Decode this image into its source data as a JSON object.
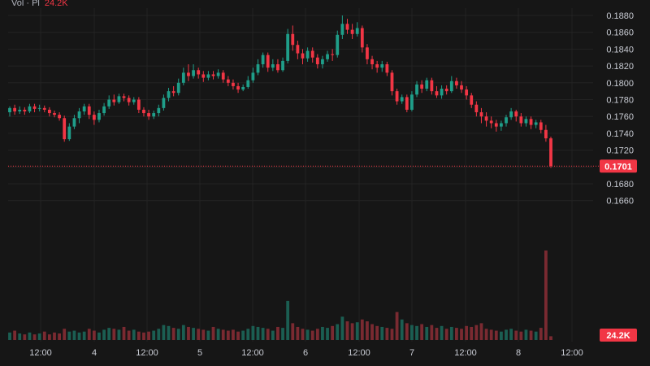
{
  "legend": {
    "label": "Vol · Pl",
    "value": "24.2K"
  },
  "colors": {
    "up": "#1f9e89",
    "down": "#f23645",
    "upVol": "#1b5e52",
    "downVol": "#7a2a31",
    "grid": "#232323",
    "bg": "#161616"
  },
  "chart_data": {
    "type": "candlestick",
    "y_ticks": [
      "0.1880",
      "0.1860",
      "0.1840",
      "0.1820",
      "0.1800",
      "0.1780",
      "0.1760",
      "0.1740",
      "0.1720",
      "0.1700",
      "0.1680",
      "0.1660"
    ],
    "x_ticks": [
      "12:00",
      "4",
      "12:00",
      "5",
      "12:00",
      "6",
      "12:00",
      "7",
      "12:00",
      "8",
      "12:00"
    ],
    "ylim": [
      0.1648,
      0.1888
    ],
    "last_price": "0.1701",
    "last_volume": "24.2K",
    "candles": [
      [
        0.1765,
        0.177,
        0.1772,
        0.176
      ],
      [
        0.177,
        0.1766,
        0.1774,
        0.1762
      ],
      [
        0.1766,
        0.1768,
        0.1772,
        0.1763
      ],
      [
        0.1768,
        0.1766,
        0.1771,
        0.1762
      ],
      [
        0.1766,
        0.1772,
        0.1775,
        0.1764
      ],
      [
        0.1772,
        0.1769,
        0.1775,
        0.1765
      ],
      [
        0.1769,
        0.177,
        0.1774,
        0.1766
      ],
      [
        0.177,
        0.1768,
        0.1773,
        0.1765
      ],
      [
        0.1768,
        0.1764,
        0.1771,
        0.176
      ],
      [
        0.1764,
        0.1762,
        0.1767,
        0.1759
      ],
      [
        0.1762,
        0.1758,
        0.1765,
        0.1755
      ],
      [
        0.1758,
        0.1733,
        0.1761,
        0.173
      ],
      [
        0.1733,
        0.1748,
        0.1752,
        0.1731
      ],
      [
        0.1748,
        0.1758,
        0.1762,
        0.1745
      ],
      [
        0.1758,
        0.1766,
        0.177,
        0.1752
      ],
      [
        0.1766,
        0.1772,
        0.1775,
        0.1762
      ],
      [
        0.1772,
        0.1762,
        0.1775,
        0.1757
      ],
      [
        0.1762,
        0.1756,
        0.1766,
        0.175
      ],
      [
        0.1756,
        0.1764,
        0.1768,
        0.1753
      ],
      [
        0.1764,
        0.1772,
        0.1776,
        0.1761
      ],
      [
        0.1772,
        0.178,
        0.1785,
        0.1769
      ],
      [
        0.178,
        0.1777,
        0.1786,
        0.1773
      ],
      [
        0.1777,
        0.1784,
        0.1787,
        0.1775
      ],
      [
        0.1784,
        0.1782,
        0.1787,
        0.1778
      ],
      [
        0.1782,
        0.1777,
        0.1785,
        0.1773
      ],
      [
        0.1777,
        0.178,
        0.1783,
        0.1774
      ],
      [
        0.178,
        0.1768,
        0.1783,
        0.1764
      ],
      [
        0.1768,
        0.1764,
        0.1771,
        0.176
      ],
      [
        0.1764,
        0.176,
        0.1768,
        0.1756
      ],
      [
        0.176,
        0.1764,
        0.1767,
        0.1757
      ],
      [
        0.1764,
        0.177,
        0.1774,
        0.176
      ],
      [
        0.177,
        0.1782,
        0.1786,
        0.1767
      ],
      [
        0.1782,
        0.179,
        0.1794,
        0.1778
      ],
      [
        0.179,
        0.1788,
        0.1796,
        0.1784
      ],
      [
        0.1788,
        0.18,
        0.1805,
        0.1785
      ],
      [
        0.18,
        0.1812,
        0.1818,
        0.1797
      ],
      [
        0.1812,
        0.1808,
        0.1822,
        0.1802
      ],
      [
        0.1808,
        0.1815,
        0.1822,
        0.1805
      ],
      [
        0.1815,
        0.181,
        0.1818,
        0.1805
      ],
      [
        0.181,
        0.1806,
        0.1814,
        0.1801
      ],
      [
        0.1806,
        0.181,
        0.1814,
        0.1803
      ],
      [
        0.181,
        0.1808,
        0.1814,
        0.1804
      ],
      [
        0.1808,
        0.1812,
        0.1816,
        0.1805
      ],
      [
        0.1812,
        0.1804,
        0.1815,
        0.18
      ],
      [
        0.1804,
        0.18,
        0.1808,
        0.1796
      ],
      [
        0.18,
        0.1796,
        0.1804,
        0.1792
      ],
      [
        0.1796,
        0.1792,
        0.18,
        0.1788
      ],
      [
        0.1792,
        0.1795,
        0.1798,
        0.179
      ],
      [
        0.1795,
        0.1803,
        0.1808,
        0.1793
      ],
      [
        0.1803,
        0.1812,
        0.1818,
        0.18
      ],
      [
        0.1812,
        0.1822,
        0.1828,
        0.1809
      ],
      [
        0.1822,
        0.1833,
        0.1836,
        0.1818
      ],
      [
        0.1833,
        0.1818,
        0.1836,
        0.1813
      ],
      [
        0.1818,
        0.1822,
        0.1828,
        0.1814
      ],
      [
        0.1822,
        0.1815,
        0.1828,
        0.1812
      ],
      [
        0.1815,
        0.1826,
        0.183,
        0.1813
      ],
      [
        0.1826,
        0.1858,
        0.1864,
        0.1823
      ],
      [
        0.1858,
        0.1845,
        0.1868,
        0.1838
      ],
      [
        0.1845,
        0.1835,
        0.185,
        0.1828
      ],
      [
        0.1835,
        0.1829,
        0.184,
        0.1822
      ],
      [
        0.1829,
        0.1838,
        0.1842,
        0.1825
      ],
      [
        0.1838,
        0.183,
        0.1842,
        0.1824
      ],
      [
        0.183,
        0.1822,
        0.1834,
        0.1817
      ],
      [
        0.1822,
        0.1828,
        0.1832,
        0.1817
      ],
      [
        0.1828,
        0.1834,
        0.1838,
        0.1825
      ],
      [
        0.1834,
        0.1833,
        0.184,
        0.1826
      ],
      [
        0.1833,
        0.1857,
        0.1862,
        0.183
      ],
      [
        0.1857,
        0.187,
        0.188,
        0.1852
      ],
      [
        0.187,
        0.1863,
        0.1876,
        0.1858
      ],
      [
        0.1863,
        0.1858,
        0.187,
        0.1852
      ],
      [
        0.1858,
        0.1865,
        0.1872,
        0.1855
      ],
      [
        0.1865,
        0.1842,
        0.1868,
        0.1836
      ],
      [
        0.1842,
        0.1828,
        0.1846,
        0.1822
      ],
      [
        0.1828,
        0.1822,
        0.1832,
        0.1816
      ],
      [
        0.1822,
        0.1818,
        0.1826,
        0.1812
      ],
      [
        0.1818,
        0.1822,
        0.1826,
        0.1813
      ],
      [
        0.1822,
        0.1812,
        0.1825,
        0.1808
      ],
      [
        0.1812,
        0.179,
        0.1815,
        0.1785
      ],
      [
        0.179,
        0.1778,
        0.1793,
        0.1774
      ],
      [
        0.1778,
        0.1783,
        0.1786,
        0.1775
      ],
      [
        0.1783,
        0.1768,
        0.1786,
        0.1765
      ],
      [
        0.1768,
        0.1786,
        0.179,
        0.1766
      ],
      [
        0.1786,
        0.1798,
        0.1802,
        0.1783
      ],
      [
        0.1798,
        0.1793,
        0.1803,
        0.1788
      ],
      [
        0.1793,
        0.1803,
        0.1806,
        0.179
      ],
      [
        0.1803,
        0.179,
        0.1806,
        0.1786
      ],
      [
        0.179,
        0.1785,
        0.1796,
        0.1782
      ],
      [
        0.1785,
        0.1793,
        0.1797,
        0.1781
      ],
      [
        0.1793,
        0.179,
        0.1797,
        0.1786
      ],
      [
        0.179,
        0.1802,
        0.1808,
        0.1788
      ],
      [
        0.1802,
        0.1797,
        0.1806,
        0.1793
      ],
      [
        0.1797,
        0.1792,
        0.1802,
        0.1788
      ],
      [
        0.1792,
        0.1785,
        0.1796,
        0.178
      ],
      [
        0.1785,
        0.1774,
        0.1788,
        0.177
      ],
      [
        0.1774,
        0.1765,
        0.1778,
        0.176
      ],
      [
        0.1765,
        0.176,
        0.177,
        0.1752
      ],
      [
        0.176,
        0.1755,
        0.1765,
        0.1748
      ],
      [
        0.1755,
        0.1752,
        0.176,
        0.1746
      ],
      [
        0.1752,
        0.1748,
        0.1756,
        0.1742
      ],
      [
        0.1748,
        0.1752,
        0.1755,
        0.1743
      ],
      [
        0.1752,
        0.1759,
        0.1762,
        0.1748
      ],
      [
        0.1759,
        0.1766,
        0.177,
        0.1756
      ],
      [
        0.1766,
        0.176,
        0.1768,
        0.1754
      ],
      [
        0.176,
        0.1752,
        0.1764,
        0.1748
      ],
      [
        0.1752,
        0.1757,
        0.176,
        0.1748
      ],
      [
        0.1757,
        0.175,
        0.176,
        0.1745
      ],
      [
        0.175,
        0.1753,
        0.1756,
        0.1746
      ],
      [
        0.1753,
        0.1744,
        0.1756,
        0.174
      ],
      [
        0.1744,
        0.1734,
        0.175,
        0.173
      ],
      [
        0.1734,
        0.1701,
        0.1736,
        0.1699
      ]
    ],
    "volumes": [
      8,
      10,
      7,
      6,
      8,
      6,
      7,
      9,
      6,
      8,
      7,
      12,
      9,
      10,
      8,
      9,
      12,
      10,
      8,
      11,
      13,
      12,
      11,
      14,
      10,
      11,
      9,
      8,
      9,
      10,
      12,
      16,
      15,
      13,
      12,
      16,
      14,
      13,
      12,
      11,
      10,
      14,
      12,
      11,
      10,
      11,
      9,
      10,
      12,
      15,
      14,
      13,
      12,
      10,
      14,
      13,
      42,
      18,
      14,
      12,
      11,
      10,
      12,
      14,
      13,
      15,
      17,
      25,
      20,
      18,
      19,
      22,
      20,
      17,
      15,
      14,
      13,
      12,
      30,
      22,
      18,
      16,
      15,
      17,
      14,
      16,
      13,
      15,
      12,
      14,
      13,
      12,
      15,
      14,
      16,
      18,
      12,
      11,
      10,
      9,
      11,
      12,
      10,
      9,
      11,
      10,
      9,
      13,
      96,
      4
    ]
  }
}
